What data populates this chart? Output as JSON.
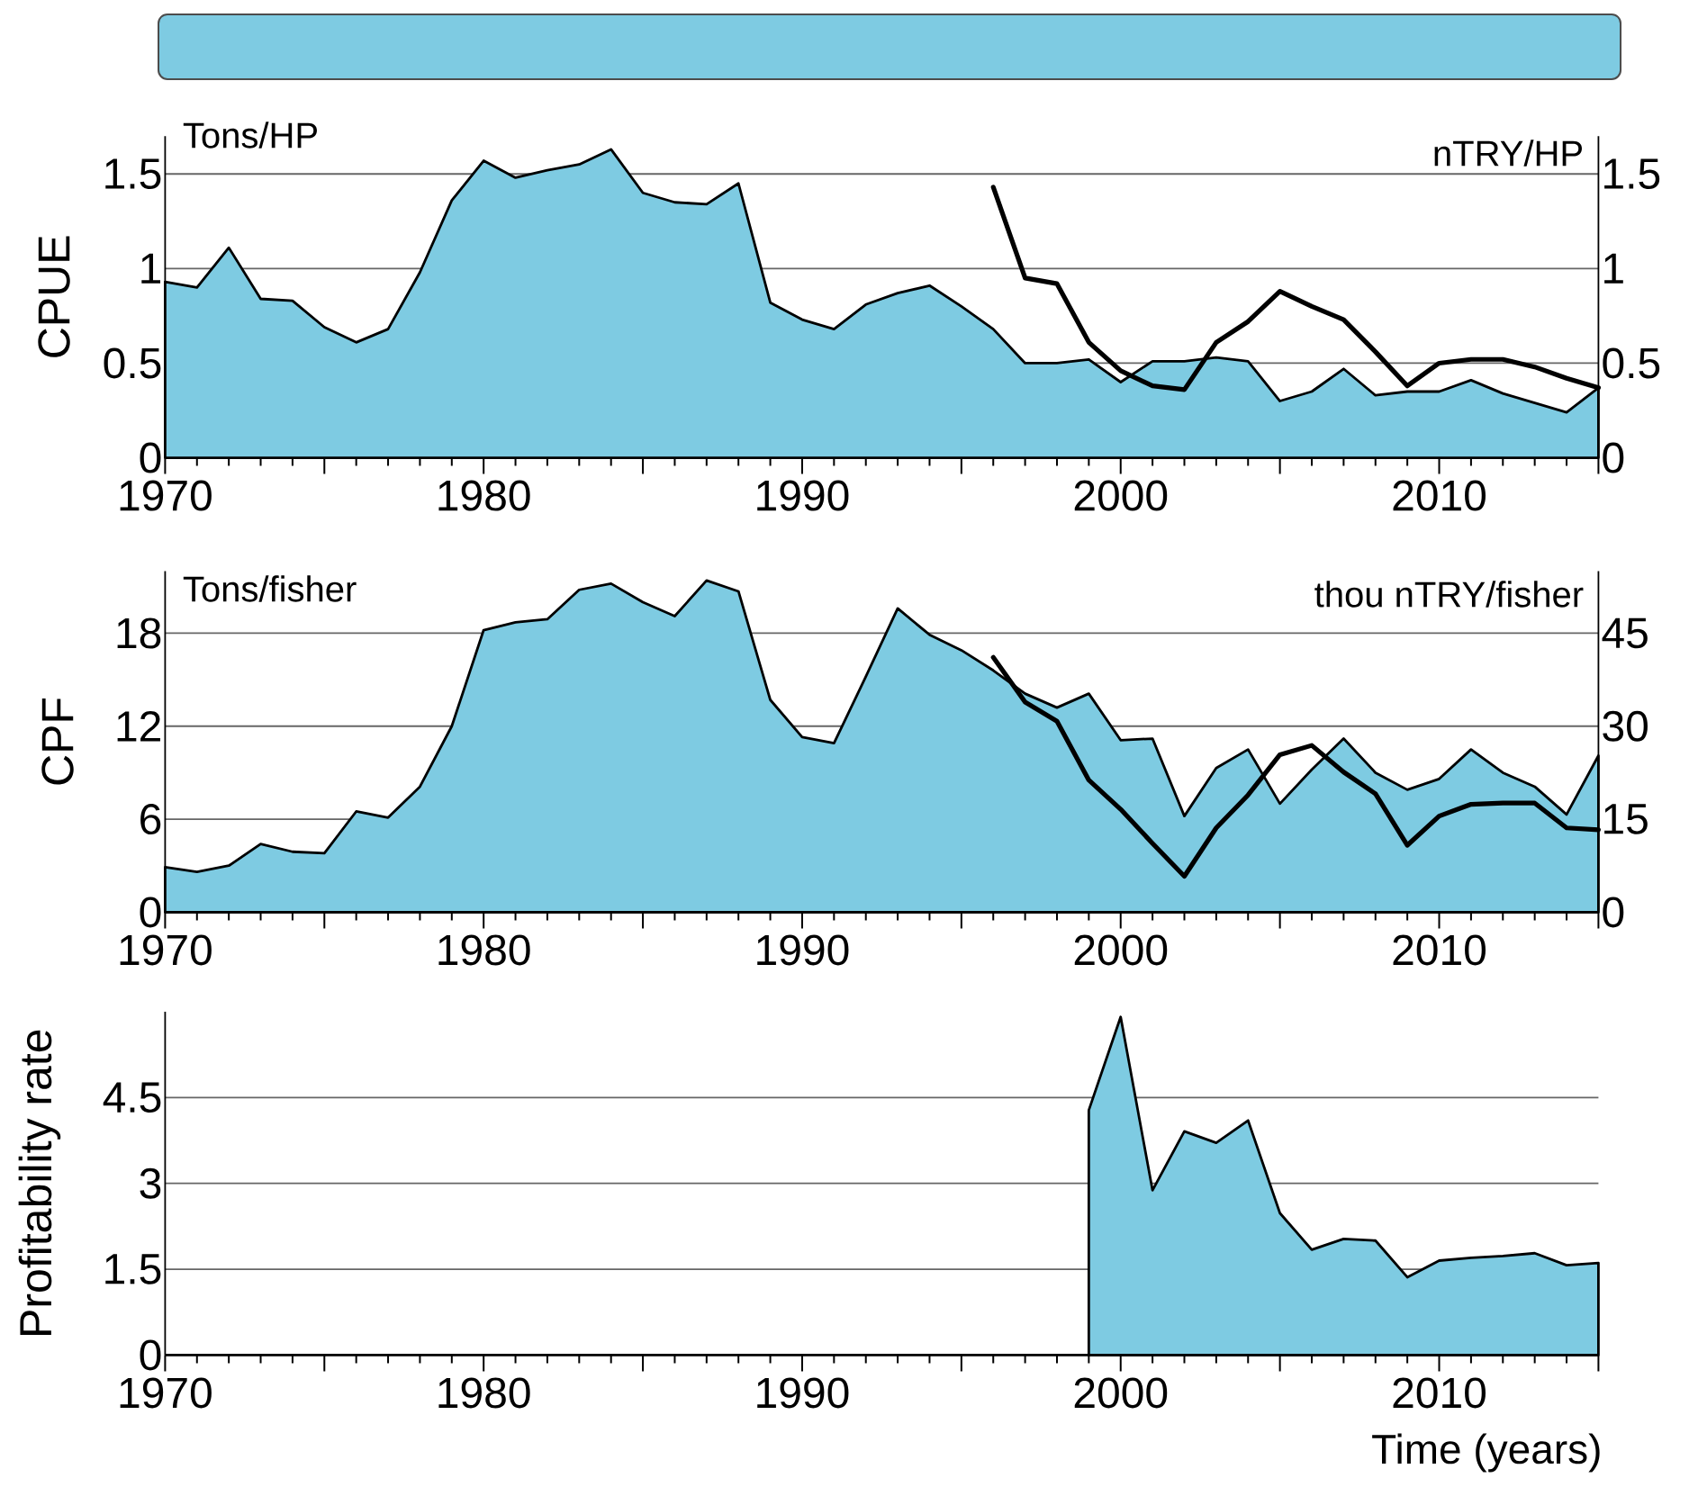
{
  "chart_data": [
    {
      "type": "area",
      "ylabel": "CPUE",
      "y2label": "nTRY/HP",
      "annotations": [
        "Tons/HP"
      ],
      "x": [
        1970,
        1971,
        1972,
        1973,
        1974,
        1975,
        1976,
        1977,
        1978,
        1979,
        1980,
        1981,
        1982,
        1983,
        1984,
        1985,
        1986,
        1987,
        1988,
        1989,
        1990,
        1991,
        1992,
        1993,
        1994,
        1995,
        1996,
        1997,
        1998,
        1999,
        2000,
        2001,
        2002,
        2003,
        2004,
        2005,
        2006,
        2007,
        2008,
        2009,
        2010,
        2011,
        2012,
        2013,
        2014,
        2015
      ],
      "series": [
        {
          "color": "#7ecbe2",
          "values": [
            0.93,
            0.9,
            1.11,
            0.84,
            0.83,
            0.69,
            0.61,
            0.68,
            0.98,
            1.36,
            1.57,
            1.48,
            1.52,
            1.55,
            1.63,
            1.4,
            1.35,
            1.34,
            1.45,
            0.82,
            0.73,
            0.68,
            0.81,
            0.87,
            0.91,
            0.8,
            0.68,
            0.5,
            0.5,
            0.52,
            0.4,
            0.51,
            0.51,
            0.53,
            0.51,
            0.3,
            0.35,
            0.47,
            0.33,
            0.35,
            0.35,
            0.41,
            0.34,
            0.29,
            0.24,
            0.37
          ]
        },
        {
          "type": "line",
          "axis": "y2",
          "color": "#000000",
          "x": [
            1996,
            1997,
            1998,
            1999,
            2000,
            2001,
            2002,
            2003,
            2004,
            2005,
            2006,
            2007,
            2008,
            2009,
            2010,
            2011,
            2012,
            2013,
            2014,
            2015
          ],
          "values": [
            1.43,
            0.95,
            0.92,
            0.61,
            0.46,
            0.38,
            0.36,
            0.61,
            0.72,
            0.88,
            0.8,
            0.73,
            0.56,
            0.38,
            0.5,
            0.52,
            0.52,
            0.48,
            0.42,
            0.37
          ]
        }
      ],
      "xlim": [
        1970,
        2015
      ],
      "xticks": [
        1970,
        {
          "value": 1975,
          "label": null
        },
        1980,
        {
          "value": 1985,
          "label": null
        },
        1990,
        {
          "value": 1995,
          "label": null
        },
        2000,
        {
          "value": 2005,
          "label": null
        },
        2010,
        {
          "value": 2015,
          "label": null
        }
      ],
      "ylim": [
        0,
        1.7
      ],
      "yticks": [
        0,
        0.5,
        1,
        1.5
      ],
      "y2lim": [
        0,
        1.7
      ],
      "y2ticks": [
        0,
        0.5,
        1,
        1.5
      ],
      "grid": "y"
    },
    {
      "type": "area",
      "ylabel": "CPF",
      "y2label": "thou nTRY/fisher",
      "annotations": [
        "Tons/fisher"
      ],
      "x": [
        1970,
        1971,
        1972,
        1973,
        1974,
        1975,
        1976,
        1977,
        1978,
        1979,
        1980,
        1981,
        1982,
        1983,
        1984,
        1985,
        1986,
        1987,
        1988,
        1989,
        1990,
        1991,
        1992,
        1993,
        1994,
        1995,
        1996,
        1997,
        1998,
        1999,
        2000,
        2001,
        2002,
        2003,
        2004,
        2005,
        2006,
        2007,
        2008,
        2009,
        2010,
        2011,
        2012,
        2013,
        2014,
        2015
      ],
      "series": [
        {
          "color": "#7ecbe2",
          "values": [
            2.9,
            2.6,
            3.0,
            4.4,
            3.9,
            3.8,
            6.5,
            6.1,
            8.1,
            12.0,
            18.2,
            18.7,
            18.9,
            20.8,
            21.2,
            20.0,
            19.1,
            21.4,
            20.7,
            13.7,
            11.3,
            10.9,
            15.2,
            19.6,
            17.9,
            16.9,
            15.6,
            14.1,
            13.2,
            14.1,
            11.1,
            11.2,
            6.2,
            9.3,
            10.5,
            7.0,
            9.2,
            11.2,
            9.0,
            7.9,
            8.6,
            10.5,
            9.0,
            8.1,
            6.3,
            10.1
          ]
        },
        {
          "type": "line",
          "axis": "y2",
          "color": "#000000",
          "x": [
            1996,
            1997,
            1998,
            1999,
            2000,
            2001,
            2002,
            2003,
            2004,
            2005,
            2006,
            2007,
            2008,
            2009,
            2010,
            2011,
            2012,
            2013,
            2014,
            2015
          ],
          "values": [
            41.1,
            33.9,
            30.8,
            21.3,
            16.6,
            11.1,
            5.8,
            13.6,
            18.9,
            25.4,
            26.9,
            22.6,
            19.1,
            10.8,
            15.5,
            17.4,
            17.6,
            17.6,
            13.6,
            13.3
          ]
        }
      ],
      "xlim": [
        1970,
        2015
      ],
      "xticks": [
        1970,
        {
          "value": 1975,
          "label": null
        },
        1980,
        {
          "value": 1985,
          "label": null
        },
        1990,
        {
          "value": 1995,
          "label": null
        },
        2000,
        {
          "value": 2005,
          "label": null
        },
        2010,
        {
          "value": 2015,
          "label": null
        }
      ],
      "ylim": [
        0,
        22
      ],
      "yticks": [
        0,
        6,
        12,
        18
      ],
      "y2lim": [
        0,
        55
      ],
      "y2ticks": [
        0,
        15,
        30,
        45
      ],
      "grid": "y"
    },
    {
      "type": "area",
      "ylabel": "Profitability rate",
      "xlabel": "Time (years)",
      "x": [
        1999,
        2000,
        2001,
        2002,
        2003,
        2004,
        2005,
        2006,
        2007,
        2008,
        2009,
        2010,
        2011,
        2012,
        2013,
        2014,
        2015
      ],
      "series": [
        {
          "color": "#7ecbe2",
          "values": [
            4.28,
            5.91,
            2.88,
            3.91,
            3.71,
            4.1,
            2.48,
            1.84,
            2.03,
            2.0,
            1.36,
            1.65,
            1.7,
            1.73,
            1.78,
            1.57,
            1.61
          ]
        }
      ],
      "xlim": [
        1970,
        2015
      ],
      "xticks": [
        1970,
        {
          "value": 1975,
          "label": null
        },
        1980,
        {
          "value": 1985,
          "label": null
        },
        1990,
        {
          "value": 1995,
          "label": null
        },
        2000,
        {
          "value": 2005,
          "label": null
        },
        2010,
        {
          "value": 2015,
          "label": null
        }
      ],
      "ylim": [
        0,
        6
      ],
      "yticks": [
        0,
        1.5,
        3,
        4.5
      ],
      "grid": "y"
    }
  ]
}
